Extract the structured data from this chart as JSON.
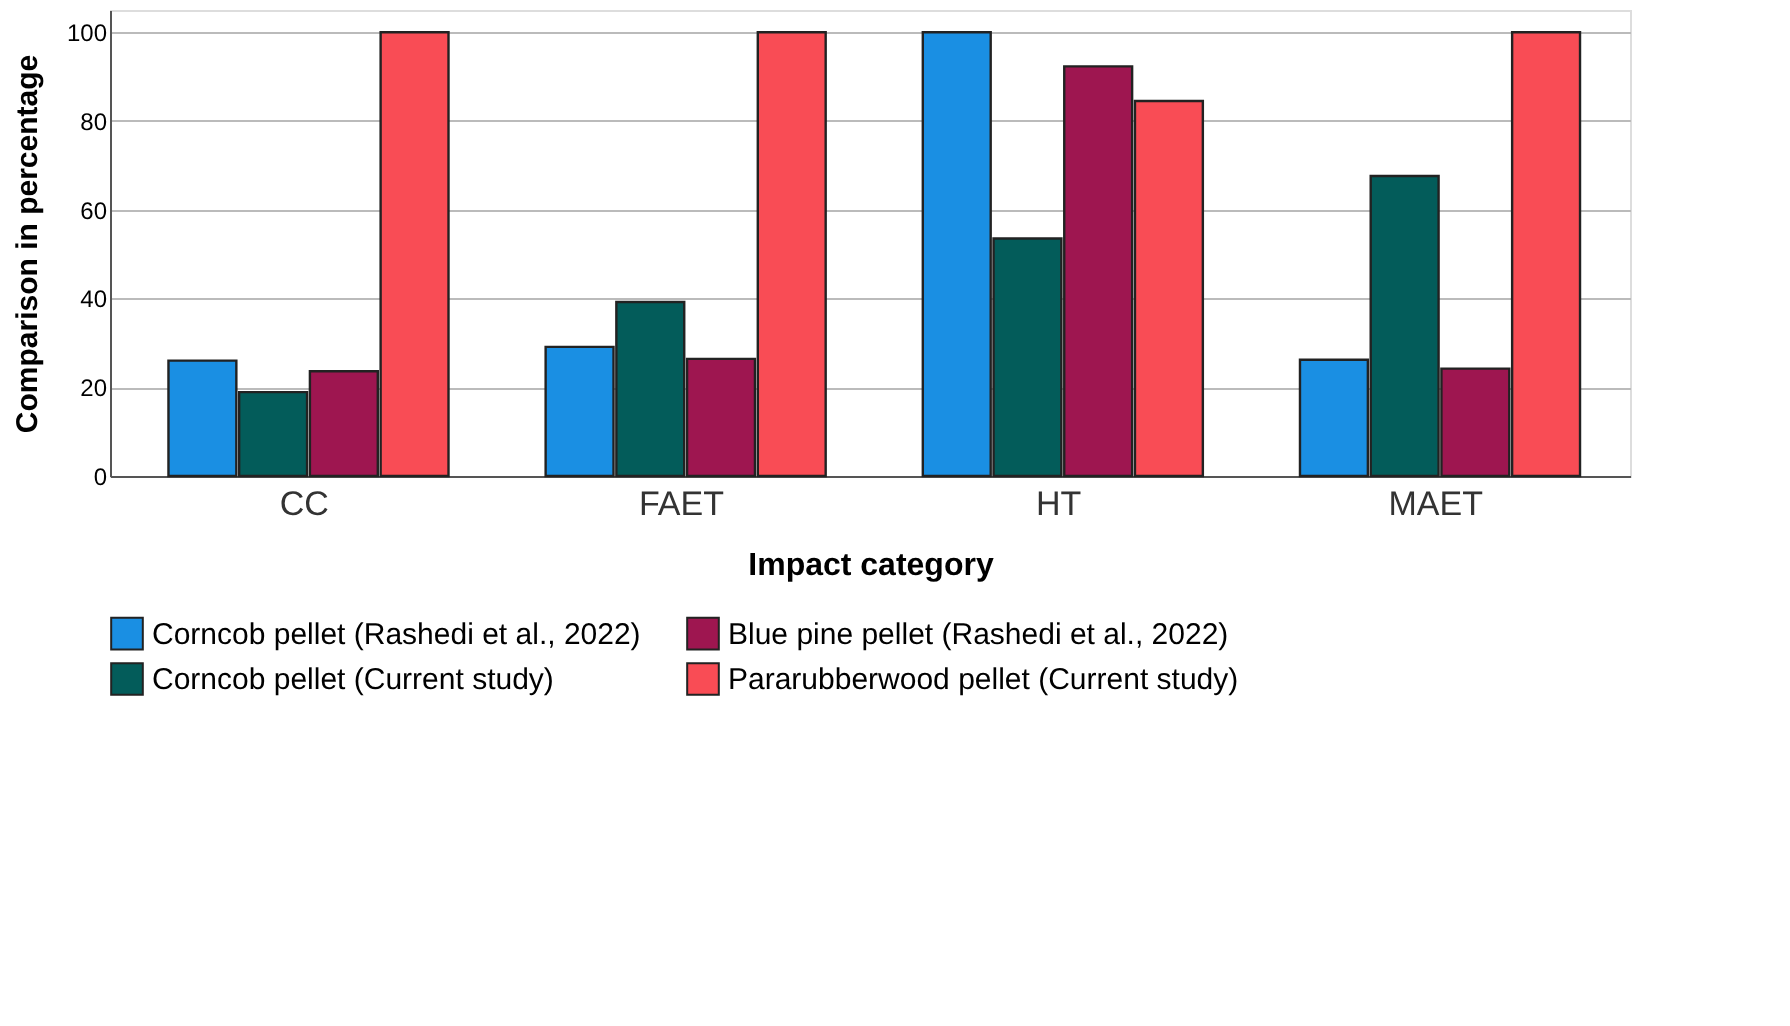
{
  "chart_data": {
    "type": "bar",
    "xlabel": "Impact category",
    "ylabel": "Comparison in percentage",
    "categories": [
      "CC",
      "FAET",
      "HT",
      "MAET"
    ],
    "series": [
      {
        "name": "Corncob pellet (Rashedi et al., 2022)",
        "color": "#1a8fe3",
        "values": [
          26.0,
          29.1,
          100,
          26.2
        ]
      },
      {
        "name": "Corncob pellet (Current study)",
        "color": "#035c5a",
        "values": [
          18.9,
          39.2,
          53.5,
          67.6
        ]
      },
      {
        "name": "Blue pine pellet (Rashedi et al., 2022)",
        "color": "#9e1650",
        "values": [
          23.6,
          26.4,
          92.3,
          24.2
        ]
      },
      {
        "name": "Pararubberwood pellet (Current study)",
        "color": "#f94c55",
        "values": [
          100,
          100,
          84.5,
          100
        ]
      }
    ],
    "ylim": [
      0,
      105
    ],
    "yticks": [
      0,
      20,
      40,
      60,
      80,
      100
    ],
    "grid": "y",
    "legend": "bottom"
  }
}
